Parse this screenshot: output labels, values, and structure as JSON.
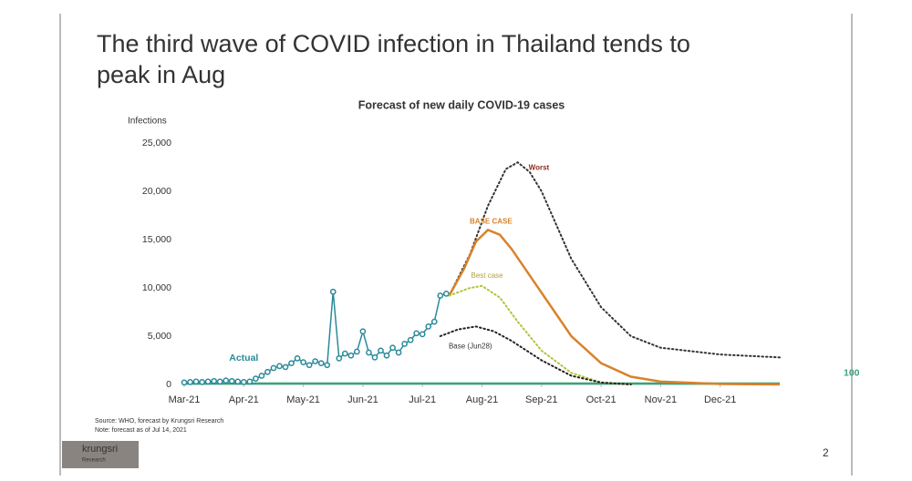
{
  "slide_title": "The third wave of COVID infection in Thailand tends to peak in Aug",
  "chart_data": {
    "type": "line",
    "title": "Forecast of new daily COVID-19 cases",
    "y_label": "Infections",
    "xlim": [
      0,
      10
    ],
    "xticks": [
      {
        "value": 0,
        "label": "Mar-21"
      },
      {
        "value": 1,
        "label": "Apr-21"
      },
      {
        "value": 2,
        "label": "May-21"
      },
      {
        "value": 3,
        "label": "Jun-21"
      },
      {
        "value": 4,
        "label": "Jul-21"
      },
      {
        "value": 5,
        "label": "Aug-21"
      },
      {
        "value": 6,
        "label": "Sep-21"
      },
      {
        "value": 7,
        "label": "Oct-21"
      },
      {
        "value": 8,
        "label": "Nov-21"
      },
      {
        "value": 9,
        "label": "Dec-21"
      }
    ],
    "ylim": [
      0,
      25000
    ],
    "yticks": [
      0,
      {
        "value": 5000,
        "label": "5,000"
      },
      {
        "value": 10000,
        "label": "10,000"
      },
      {
        "value": 15000,
        "label": "15,000"
      },
      {
        "value": 20000,
        "label": "20,000"
      },
      {
        "value": 25000,
        "label": "25,000"
      }
    ],
    "series": [
      {
        "name": "100",
        "color": "#3aa37a",
        "style": "solid",
        "x": [
          0,
          10
        ],
        "values": [
          100,
          100
        ]
      },
      {
        "name": "Actual",
        "color": "#2a8a9a",
        "style": "markers",
        "x": [
          0,
          0.1,
          0.2,
          0.3,
          0.4,
          0.5,
          0.6,
          0.7,
          0.8,
          0.9,
          1.0,
          1.1,
          1.2,
          1.3,
          1.4,
          1.5,
          1.6,
          1.7,
          1.8,
          1.9,
          2.0,
          2.1,
          2.2,
          2.3,
          2.4,
          2.5,
          2.6,
          2.7,
          2.8,
          2.9,
          3.0,
          3.1,
          3.2,
          3.3,
          3.4,
          3.5,
          3.6,
          3.7,
          3.8,
          3.9,
          4.0,
          4.1,
          4.2,
          4.3,
          4.4
        ],
        "values": [
          200,
          250,
          300,
          250,
          300,
          350,
          300,
          400,
          350,
          300,
          250,
          300,
          600,
          900,
          1300,
          1700,
          1900,
          1800,
          2200,
          2700,
          2300,
          2000,
          2400,
          2200,
          2000,
          9600,
          2700,
          3200,
          3000,
          3400,
          5500,
          3300,
          2800,
          3500,
          3000,
          3800,
          3300,
          4200,
          4600,
          5300,
          5200,
          6000,
          6500,
          9200,
          9400
        ]
      },
      {
        "name": "Worst",
        "color": "#333333",
        "label_color": "#8b2a1a",
        "style": "dotted",
        "x": [
          4.45,
          4.8,
          5.1,
          5.4,
          5.6,
          5.8,
          6.0,
          6.5,
          7.0,
          7.5,
          8.0,
          9.0,
          10.0
        ],
        "values": [
          9200,
          13500,
          18500,
          22300,
          23000,
          22000,
          20000,
          13000,
          8000,
          5000,
          3800,
          3100,
          2800
        ]
      },
      {
        "name": "BASE CASE",
        "color": "#d9822b",
        "label_color": "#d9822b",
        "style": "solid",
        "x": [
          4.45,
          4.7,
          4.9,
          5.1,
          5.3,
          5.5,
          6.0,
          6.5,
          7.0,
          7.5,
          8.0,
          9.0,
          10.0
        ],
        "values": [
          9200,
          12000,
          14800,
          16000,
          15500,
          14000,
          9500,
          5000,
          2200,
          800,
          300,
          50,
          0
        ]
      },
      {
        "name": "Best case",
        "color": "#b5c23a",
        "label_color": "#b5a23a",
        "style": "dotted",
        "x": [
          4.45,
          4.8,
          5.0,
          5.3,
          5.6,
          6.0,
          6.5,
          7.0,
          7.5
        ],
        "values": [
          9200,
          10000,
          10200,
          9000,
          6500,
          3500,
          1200,
          200,
          0
        ]
      },
      {
        "name": "Base (Jun28)",
        "color": "#222222",
        "label_color": "#333333",
        "style": "dotted",
        "x": [
          4.3,
          4.6,
          4.9,
          5.2,
          5.5,
          6.0,
          6.5,
          7.0,
          7.5
        ],
        "values": [
          5000,
          5700,
          6000,
          5500,
          4500,
          2500,
          900,
          200,
          0
        ]
      }
    ]
  },
  "notes": [
    "Source: WHO, forecast by Krungsri Research",
    "Note: forecast as of Jul 14, 2021"
  ],
  "logo": {
    "name": "krungsri",
    "sub": "Research"
  },
  "page_number": "2"
}
